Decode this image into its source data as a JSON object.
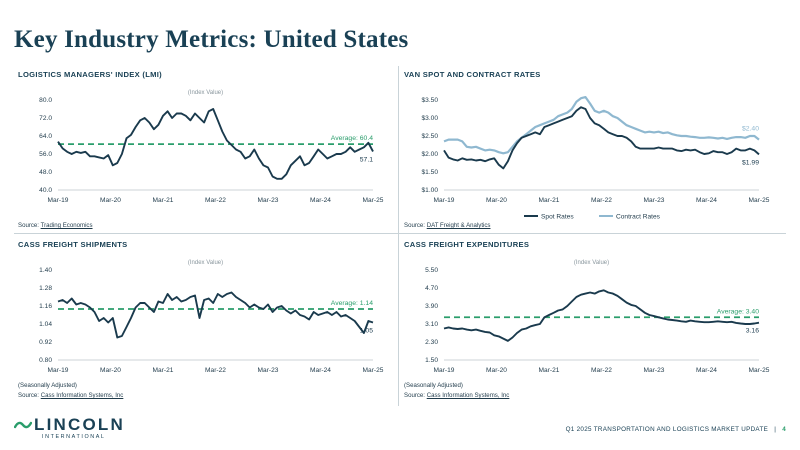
{
  "page": {
    "title": "Key Industry Metrics: United States",
    "footer_text": "Q1 2025 TRANSPORTATION AND LOGISTICS MARKET UPDATE",
    "footer_sep": "|",
    "page_number": "4",
    "logo_name": "LINCOLN",
    "logo_sub": "INTERNATIONAL"
  },
  "colors": {
    "navy": "#1a3a4d",
    "green": "#2a9d6b",
    "light_blue": "#8fb8d0",
    "grid": "#d7dde0",
    "text": "#1f3a4a"
  },
  "panels": [
    {
      "title": "LOGISTICS MANAGERS' INDEX (LMI)",
      "index_label": "(Index Value)",
      "avg_label": "Average: 60.4",
      "end_label": "57.1",
      "note": "",
      "source_prefix": "Source: ",
      "source_link": "Trading Economics"
    },
    {
      "title": "VAN SPOT AND CONTRACT RATES",
      "index_label": "",
      "contract_end_label": "$2.40",
      "spot_end_label": "$1.99",
      "note": "",
      "source_prefix": "Source: ",
      "source_link": "DAT Freight & Analytics"
    },
    {
      "title": "CASS FREIGHT SHIPMENTS",
      "index_label": "(Index Value)",
      "avg_label": "Average: 1.14",
      "end_label": "1.05",
      "note": "(Seasonally Adjusted)",
      "source_prefix": "Source: ",
      "source_link": "Cass Information Systems, Inc"
    },
    {
      "title": "CASS FREIGHT EXPENDITURES",
      "index_label": "(Index Value)",
      "avg_label": "Average: 3.40",
      "end_label": "3.16",
      "note": "(Seasonally Adjusted)",
      "source_prefix": "Source: ",
      "source_link": "Cass Information Systems, Inc"
    }
  ],
  "chart_data": [
    {
      "type": "line",
      "title": "LOGISTICS MANAGERS' INDEX (LMI)",
      "x_ticks": [
        "Mar-19",
        "Mar-20",
        "Mar-21",
        "Mar-22",
        "Mar-23",
        "Mar-24",
        "Mar-25"
      ],
      "y_ticks": [
        "40.0",
        "48.0",
        "56.0",
        "64.0",
        "72.0",
        "80.0"
      ],
      "ylim": [
        40,
        80
      ],
      "average": 60.4,
      "series": [
        {
          "values": [
            61.5,
            58.5,
            57,
            56,
            57,
            56.5,
            57,
            55,
            55,
            54.5,
            54,
            55.5,
            51,
            52,
            56,
            63,
            64.5,
            68,
            71,
            72,
            70,
            67,
            69,
            73,
            75,
            72,
            74,
            74,
            73,
            71,
            74,
            72,
            70,
            75,
            76,
            71,
            66,
            62,
            60,
            58,
            57,
            54,
            55,
            58,
            54,
            51,
            50,
            46,
            45,
            45,
            47,
            51,
            53,
            55,
            51,
            52,
            55,
            58,
            56,
            54,
            55,
            56,
            56,
            57,
            59,
            57,
            58,
            59,
            61,
            57.1
          ]
        }
      ]
    },
    {
      "type": "line",
      "title": "VAN SPOT AND CONTRACT RATES",
      "x_ticks": [
        "Mar-19",
        "Mar-20",
        "Mar-21",
        "Mar-22",
        "Mar-23",
        "Mar-24",
        "Mar-25"
      ],
      "y_ticks": [
        "$1.00",
        "$1.50",
        "$2.00",
        "$2.50",
        "$3.00",
        "$3.50"
      ],
      "ylim": [
        1.0,
        3.5
      ],
      "legend": [
        "Spot Rates",
        "Contract Rates"
      ],
      "legend_position": "bottom",
      "series": [
        {
          "name": "Spot Rates",
          "values": [
            2.1,
            1.9,
            1.85,
            1.82,
            1.88,
            1.84,
            1.85,
            1.82,
            1.84,
            1.8,
            1.85,
            1.88,
            1.7,
            1.6,
            1.8,
            2.1,
            2.3,
            2.45,
            2.5,
            2.55,
            2.6,
            2.55,
            2.75,
            2.8,
            2.85,
            2.9,
            2.95,
            3.0,
            3.05,
            3.2,
            3.3,
            3.25,
            3.0,
            2.85,
            2.8,
            2.7,
            2.6,
            2.55,
            2.5,
            2.5,
            2.45,
            2.35,
            2.2,
            2.15,
            2.15,
            2.15,
            2.15,
            2.18,
            2.15,
            2.15,
            2.15,
            2.1,
            2.08,
            2.12,
            2.1,
            2.12,
            2.05,
            2.0,
            2.02,
            2.08,
            2.05,
            2.05,
            2.0,
            2.05,
            2.15,
            2.1,
            2.1,
            2.15,
            2.1,
            1.99
          ]
        },
        {
          "name": "Contract Rates",
          "values": [
            2.35,
            2.4,
            2.4,
            2.4,
            2.35,
            2.2,
            2.18,
            2.2,
            2.15,
            2.1,
            2.12,
            2.1,
            2.05,
            2.02,
            2.05,
            2.2,
            2.35,
            2.45,
            2.55,
            2.65,
            2.75,
            2.8,
            2.85,
            2.9,
            2.95,
            3.05,
            3.1,
            3.15,
            3.25,
            3.45,
            3.55,
            3.58,
            3.4,
            3.2,
            3.15,
            3.2,
            3.15,
            3.05,
            3.0,
            2.9,
            2.8,
            2.75,
            2.7,
            2.65,
            2.6,
            2.62,
            2.6,
            2.62,
            2.58,
            2.6,
            2.55,
            2.52,
            2.5,
            2.5,
            2.48,
            2.47,
            2.45,
            2.45,
            2.46,
            2.45,
            2.43,
            2.45,
            2.42,
            2.45,
            2.47,
            2.47,
            2.45,
            2.5,
            2.5,
            2.4
          ]
        }
      ]
    },
    {
      "type": "line",
      "title": "CASS FREIGHT SHIPMENTS",
      "x_ticks": [
        "Mar-19",
        "Mar-20",
        "Mar-21",
        "Mar-22",
        "Mar-23",
        "Mar-24",
        "Mar-25"
      ],
      "y_ticks": [
        "0.80",
        "0.92",
        "1.04",
        "1.16",
        "1.28",
        "1.40"
      ],
      "ylim": [
        0.8,
        1.4
      ],
      "average": 1.14,
      "series": [
        {
          "values": [
            1.19,
            1.2,
            1.18,
            1.21,
            1.17,
            1.18,
            1.17,
            1.15,
            1.12,
            1.06,
            1.08,
            1.05,
            1.08,
            0.95,
            0.96,
            1.02,
            1.08,
            1.15,
            1.18,
            1.18,
            1.15,
            1.12,
            1.19,
            1.18,
            1.24,
            1.2,
            1.22,
            1.19,
            1.2,
            1.22,
            1.23,
            1.08,
            1.2,
            1.21,
            1.18,
            1.24,
            1.22,
            1.24,
            1.25,
            1.22,
            1.2,
            1.18,
            1.15,
            1.17,
            1.15,
            1.14,
            1.17,
            1.12,
            1.15,
            1.16,
            1.13,
            1.11,
            1.13,
            1.1,
            1.09,
            1.07,
            1.12,
            1.1,
            1.11,
            1.12,
            1.1,
            1.12,
            1.09,
            1.1,
            1.08,
            1.06,
            1.02,
            0.98,
            1.06,
            1.05
          ]
        }
      ]
    },
    {
      "type": "line",
      "title": "CASS FREIGHT EXPENDITURES",
      "x_ticks": [
        "Mar-19",
        "Mar-20",
        "Mar-21",
        "Mar-22",
        "Mar-23",
        "Mar-24",
        "Mar-25"
      ],
      "y_ticks": [
        "1.50",
        "2.30",
        "3.10",
        "3.90",
        "4.70",
        "5.50"
      ],
      "ylim": [
        1.5,
        5.5
      ],
      "average": 3.4,
      "series": [
        {
          "values": [
            2.9,
            2.95,
            2.9,
            2.88,
            2.9,
            2.85,
            2.82,
            2.85,
            2.8,
            2.75,
            2.72,
            2.6,
            2.55,
            2.45,
            2.35,
            2.5,
            2.7,
            2.85,
            2.9,
            3.0,
            3.05,
            3.1,
            3.4,
            3.5,
            3.6,
            3.7,
            3.75,
            3.9,
            4.1,
            4.3,
            4.4,
            4.45,
            4.5,
            4.45,
            4.55,
            4.6,
            4.5,
            4.45,
            4.35,
            4.2,
            4.05,
            3.95,
            3.9,
            3.75,
            3.6,
            3.5,
            3.45,
            3.4,
            3.35,
            3.3,
            3.28,
            3.25,
            3.22,
            3.2,
            3.25,
            3.22,
            3.2,
            3.18,
            3.18,
            3.2,
            3.22,
            3.2,
            3.18,
            3.2,
            3.15,
            3.12,
            3.1,
            3.1,
            3.12,
            3.16
          ]
        }
      ]
    }
  ]
}
